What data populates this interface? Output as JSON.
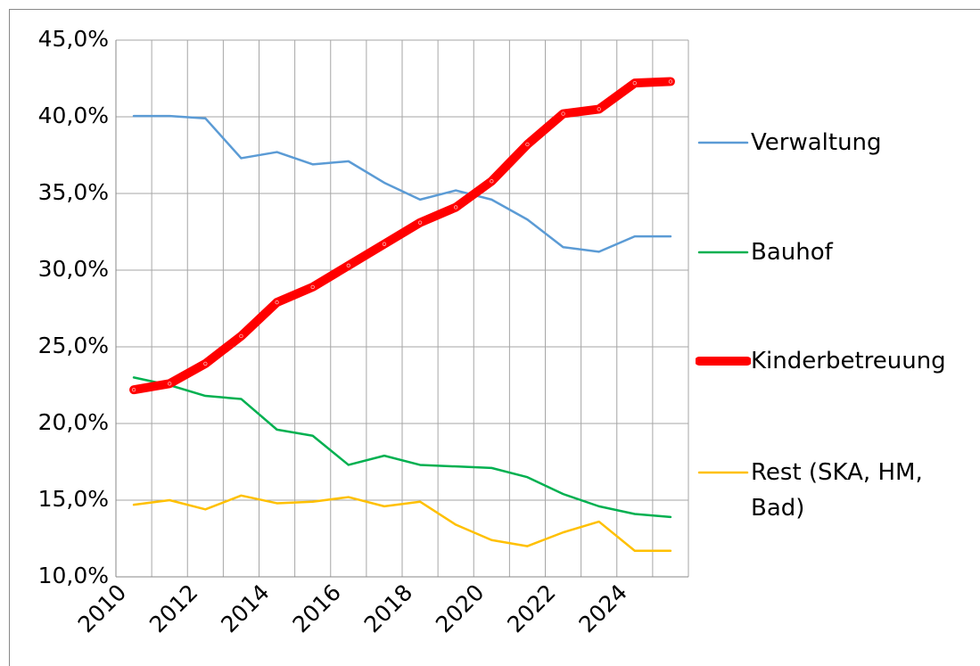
{
  "chart_data": {
    "type": "line",
    "categories": [
      "2010",
      null,
      "2012",
      null,
      "2014",
      null,
      "2016",
      null,
      "2018",
      null,
      "2020",
      null,
      "2022",
      null,
      "2024",
      null
    ],
    "series": [
      {
        "name": "Verwaltung",
        "color": "#5b9bd5",
        "width": 2.5,
        "values": [
          40.05,
          40.05,
          39.9,
          37.3,
          37.7,
          36.9,
          37.1,
          35.7,
          34.6,
          35.2,
          34.6,
          33.3,
          31.5,
          31.2,
          32.2,
          32.2
        ]
      },
      {
        "name": "Bauhof",
        "color": "#00b050",
        "width": 2.5,
        "values": [
          23.0,
          22.5,
          21.8,
          21.6,
          19.6,
          19.2,
          17.3,
          17.9,
          17.3,
          17.2,
          17.1,
          16.5,
          15.4,
          14.6,
          14.1,
          13.9
        ]
      },
      {
        "name": "Kinderbetreuung",
        "color": "#ff0000",
        "width": 10,
        "values": [
          22.2,
          22.6,
          23.9,
          25.7,
          27.9,
          28.9,
          30.3,
          31.7,
          33.1,
          34.1,
          35.8,
          38.2,
          40.2,
          40.5,
          42.2,
          42.3
        ]
      },
      {
        "name": "Rest (SKA, HM, Bad)",
        "color": "#ffc000",
        "width": 2.5,
        "values": [
          14.7,
          15.0,
          14.4,
          15.3,
          14.8,
          14.9,
          15.2,
          14.6,
          14.9,
          13.4,
          12.4,
          12.0,
          12.9,
          13.6,
          11.7,
          11.7
        ]
      }
    ],
    "ylim": [
      10,
      45
    ],
    "yticks": [
      {
        "value": 10,
        "label": "10,0%"
      },
      {
        "value": 15,
        "label": "15,0%"
      },
      {
        "value": 20,
        "label": "20,0%"
      },
      {
        "value": 25,
        "label": "25,0%"
      },
      {
        "value": 30,
        "label": "30,0%"
      },
      {
        "value": 35,
        "label": "35,0%"
      },
      {
        "value": 40,
        "label": "40,0%"
      },
      {
        "value": 45,
        "label": "45,0%"
      }
    ],
    "grid": true,
    "legend": "right"
  }
}
